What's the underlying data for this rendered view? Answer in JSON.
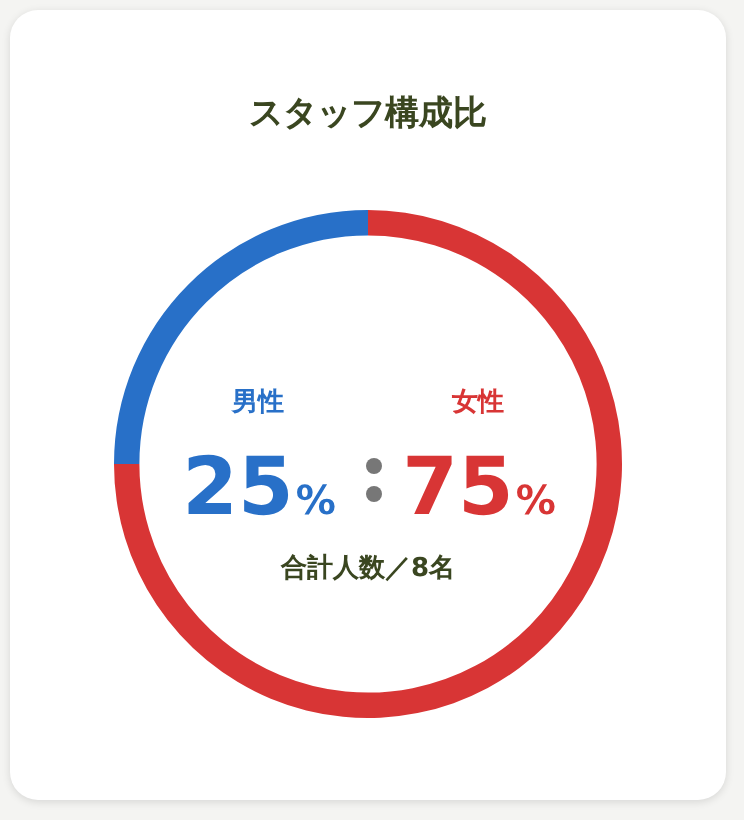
{
  "chart_data": {
    "type": "donut",
    "title": "スタッフ構成比",
    "categories": [
      "男性",
      "女性"
    ],
    "values": [
      25,
      75
    ],
    "colors": [
      "#2870c8",
      "#d83535"
    ],
    "value_labels": [
      "25%",
      "75%"
    ],
    "annotations": [
      "合計人数／8名"
    ],
    "legend": false
  }
}
